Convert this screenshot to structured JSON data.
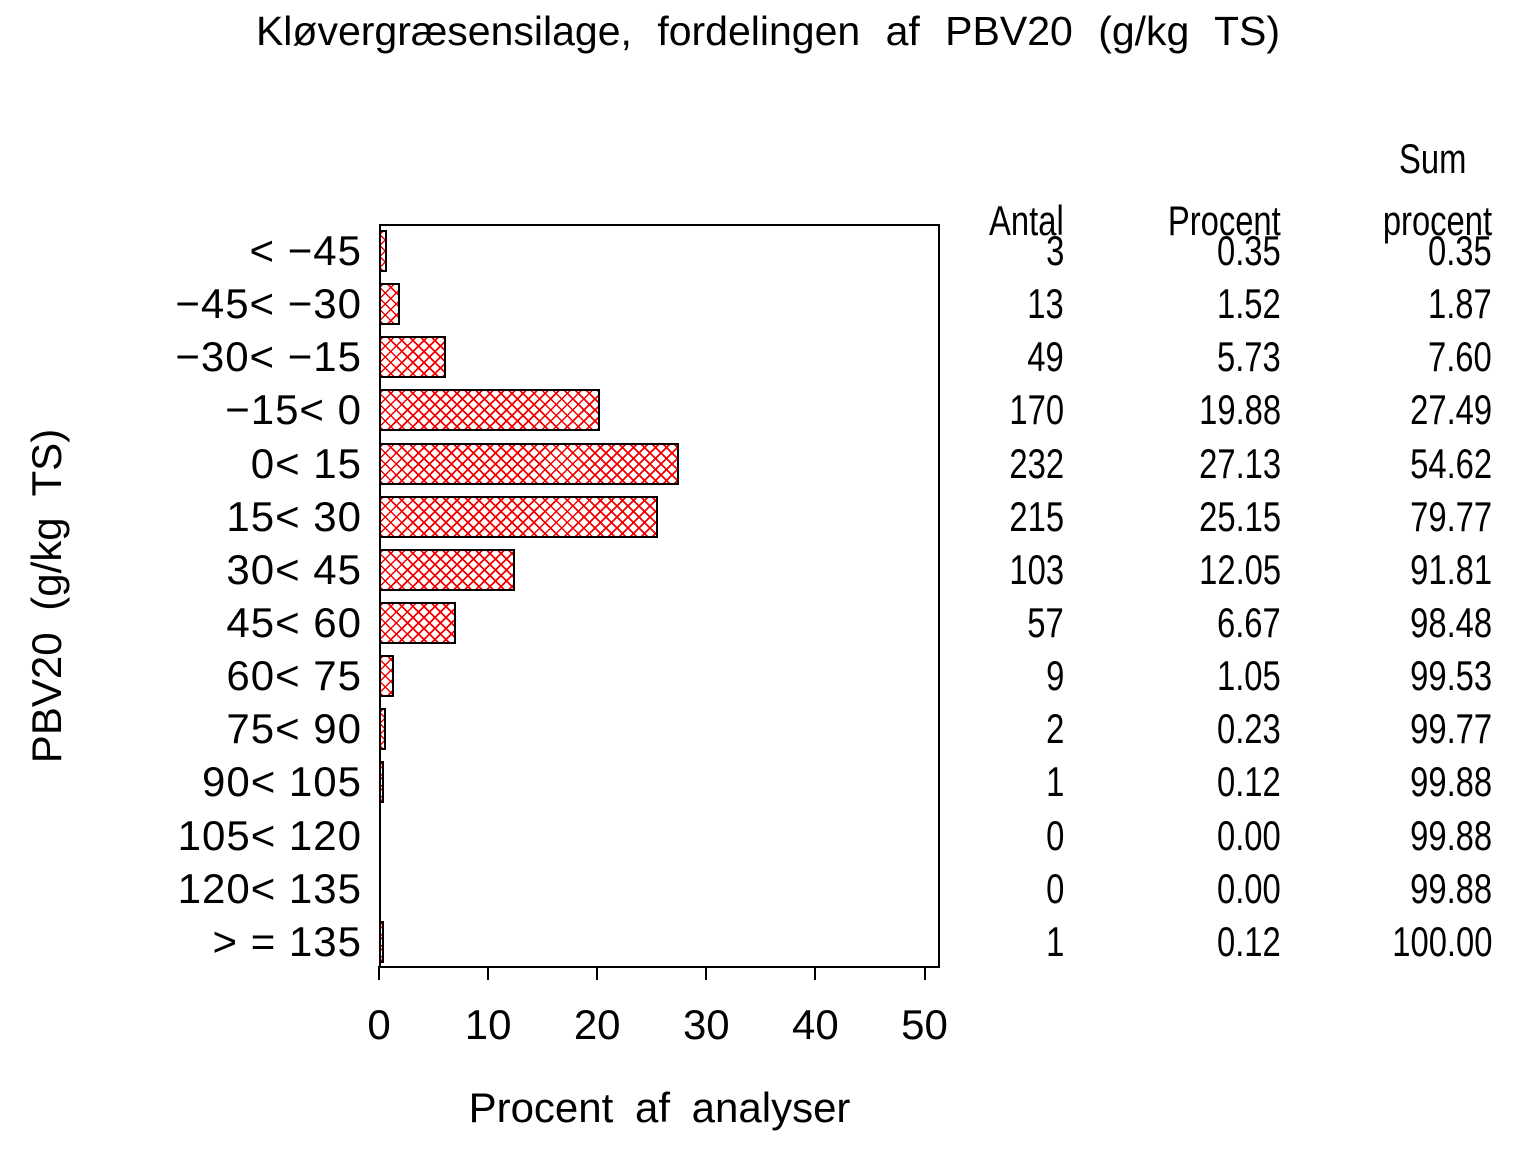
{
  "title": "Kløvergræsensilage, fordelingen af PBV20 (g/kg TS)",
  "y_axis": {
    "label": "PBV20 (g/kg TS)"
  },
  "x_axis": {
    "label": "Procent af analyser",
    "ticks": [
      "0",
      "10",
      "20",
      "30",
      "40",
      "50"
    ]
  },
  "columns": {
    "antal": "Antal",
    "procent": "Procent",
    "sum_line1": "Sum",
    "sum_line2": "procent"
  },
  "chart_data": {
    "type": "bar",
    "orientation": "horizontal",
    "title": "Kløvergræsensilage, fordelingen af PBV20 (g/kg TS)",
    "xlabel": "Procent af analyser",
    "ylabel": "PBV20 (g/kg TS)",
    "xlim": [
      0,
      51.35
    ],
    "x_ticks": [
      0,
      10,
      20,
      30,
      40,
      50
    ],
    "grid": false,
    "legend": false,
    "bar_value_series": "Procent",
    "bar_fill": "crosshatch",
    "hatch_color": "#f40000",
    "bar_border_color": "#000000",
    "categories": [
      "< −45",
      "−45< −30",
      "−30< −15",
      "−15< 0",
      "0< 15",
      "15< 30",
      "30< 45",
      "45< 60",
      "60< 75",
      "75< 90",
      "90< 105",
      "105< 120",
      "120< 135",
      "> = 135"
    ],
    "series": [
      {
        "name": "Antal",
        "values": [
          3,
          13,
          49,
          170,
          232,
          215,
          103,
          57,
          9,
          2,
          1,
          0,
          0,
          1
        ]
      },
      {
        "name": "Procent",
        "values": [
          0.35,
          1.52,
          5.73,
          19.88,
          27.13,
          25.15,
          12.05,
          6.67,
          1.05,
          0.23,
          0.12,
          0.0,
          0.0,
          0.12
        ]
      },
      {
        "name": "Sum procent",
        "values": [
          0.35,
          1.87,
          7.6,
          27.49,
          54.62,
          79.77,
          91.81,
          98.48,
          99.53,
          99.77,
          99.88,
          99.88,
          99.88,
          100.0
        ]
      }
    ],
    "rows": [
      {
        "label": "< −45",
        "antal": "3",
        "procent": "0.35",
        "sum": "0.35"
      },
      {
        "label": "−45< −30",
        "antal": "13",
        "procent": "1.52",
        "sum": "1.87"
      },
      {
        "label": "−30< −15",
        "antal": "49",
        "procent": "5.73",
        "sum": "7.60"
      },
      {
        "label": "−15< 0",
        "antal": "170",
        "procent": "19.88",
        "sum": "27.49"
      },
      {
        "label": "0< 15",
        "antal": "232",
        "procent": "27.13",
        "sum": "54.62"
      },
      {
        "label": "15< 30",
        "antal": "215",
        "procent": "25.15",
        "sum": "79.77"
      },
      {
        "label": "30< 45",
        "antal": "103",
        "procent": "12.05",
        "sum": "91.81"
      },
      {
        "label": "45< 60",
        "antal": "57",
        "procent": "6.67",
        "sum": "98.48"
      },
      {
        "label": "60< 75",
        "antal": "9",
        "procent": "1.05",
        "sum": "99.53"
      },
      {
        "label": "75< 90",
        "antal": "2",
        "procent": "0.23",
        "sum": "99.77"
      },
      {
        "label": "90< 105",
        "antal": "1",
        "procent": "0.12",
        "sum": "99.88"
      },
      {
        "label": "105< 120",
        "antal": "0",
        "procent": "0.00",
        "sum": "99.88"
      },
      {
        "label": "120< 135",
        "antal": "0",
        "procent": "0.00",
        "sum": "99.88"
      },
      {
        "label": "> = 135",
        "antal": "1",
        "procent": "0.12",
        "sum": "100.00"
      }
    ]
  }
}
